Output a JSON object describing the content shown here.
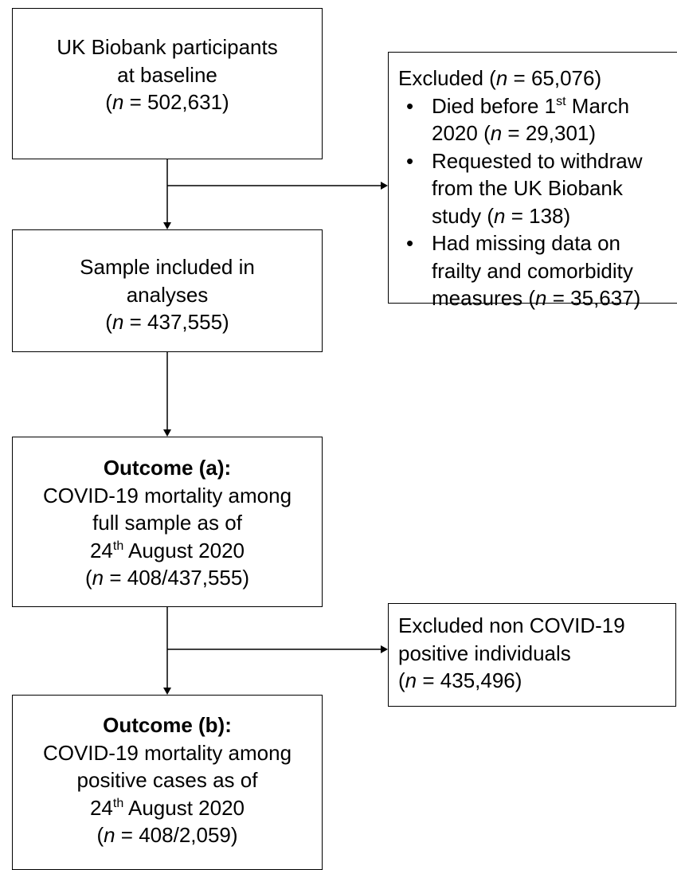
{
  "nodes": [
    {
      "lines": [
        [
          "UK Biobank participants"
        ],
        [
          "at baseline"
        ],
        [
          "(",
          "n",
          " = 502,631)"
        ]
      ]
    },
    {
      "lines": [
        [
          "Sample included in"
        ],
        [
          "analyses"
        ],
        [
          "(",
          "n",
          " = 437,555)"
        ]
      ]
    },
    {
      "lines": [
        [
          "Outcome (a):"
        ],
        [
          "COVID-19 mortality among"
        ],
        [
          "full sample as of"
        ],
        [
          "24",
          "th",
          " August 2020"
        ],
        [
          "(",
          "n",
          " = 408/437,555)"
        ]
      ]
    },
    {
      "lines": [
        [
          "Outcome (b):"
        ],
        [
          "COVID-19 mortality among"
        ],
        [
          "positive cases as of"
        ],
        [
          "24",
          "th",
          " August 2020"
        ],
        [
          "(",
          "n",
          " = 408/2,059)"
        ]
      ]
    }
  ],
  "exclusions": [
    {
      "heading": [
        "Excluded (",
        "n",
        " = 65,076)"
      ],
      "items": [
        {
          "lines": [
            [
              "Died before 1",
              "st",
              " March"
            ],
            [
              "2020 (",
              "n",
              " = 29,301)"
            ]
          ]
        },
        {
          "lines": [
            [
              "Requested to withdraw"
            ],
            [
              "from the UK Biobank"
            ],
            [
              "study (",
              "n",
              " = 138)"
            ]
          ]
        },
        {
          "lines": [
            [
              "Had missing data on"
            ],
            [
              "frailty and comorbidity"
            ],
            [
              "measures (",
              "n",
              " = 35,637)"
            ]
          ]
        }
      ]
    },
    {
      "lines": [
        [
          "Excluded non COVID-19"
        ],
        [
          "positive individuals"
        ],
        [
          "(",
          "n",
          " = 435,496)"
        ]
      ]
    }
  ]
}
